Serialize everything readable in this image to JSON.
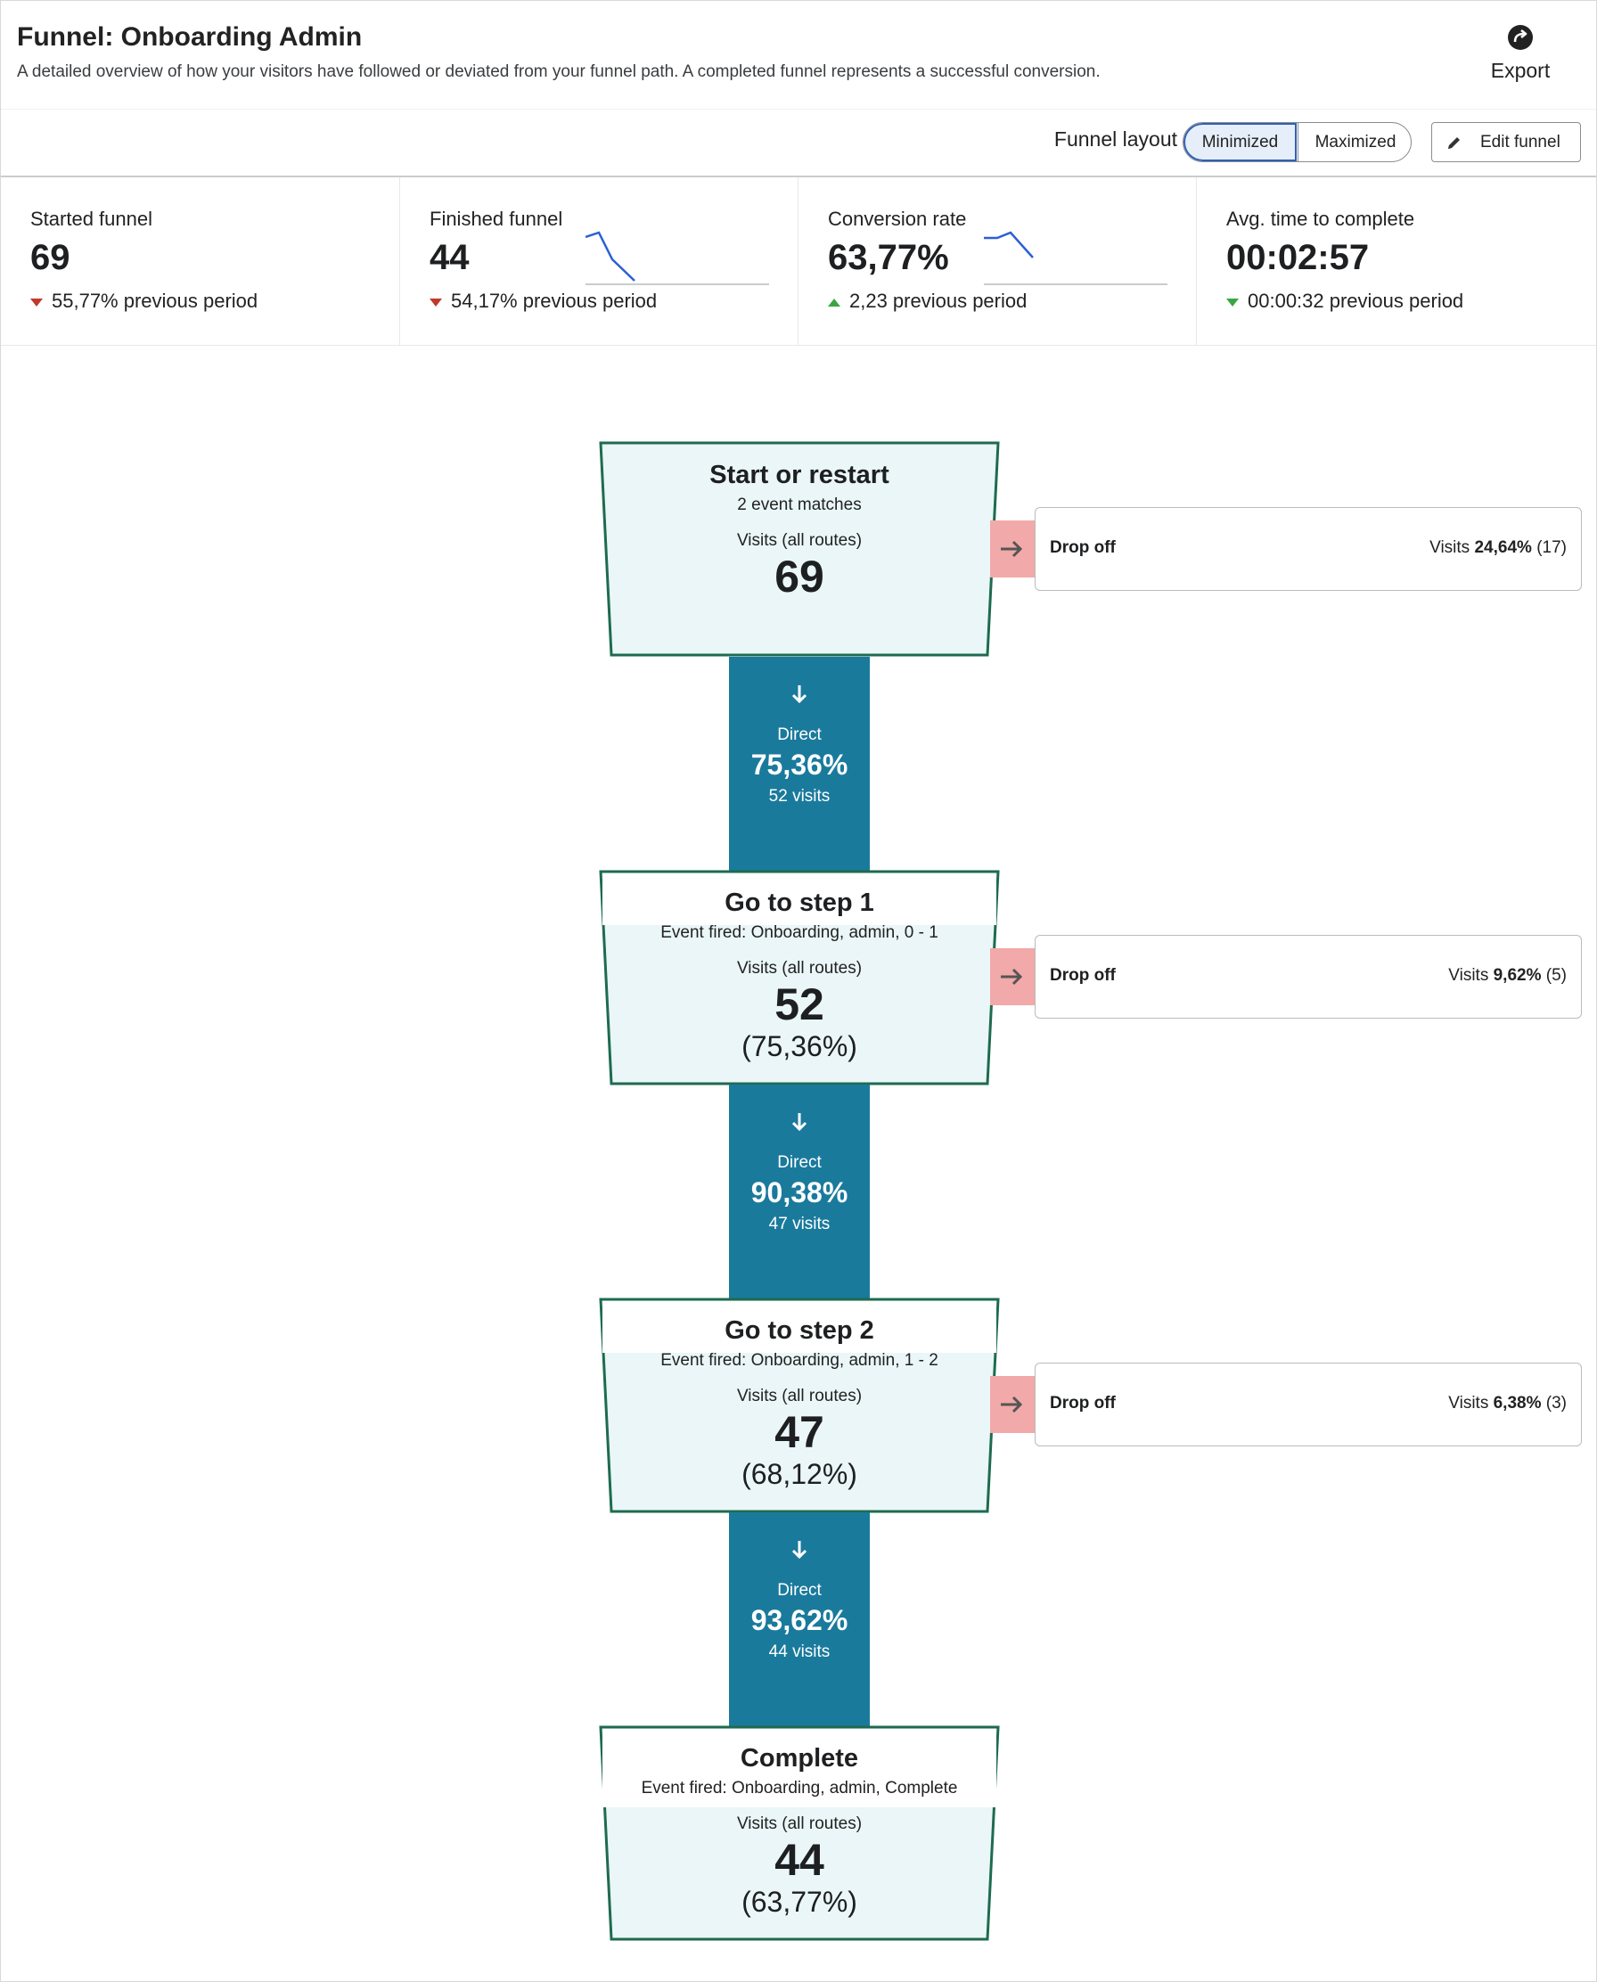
{
  "header": {
    "title": "Funnel: Onboarding Admin",
    "subtitle": "A detailed overview of how your visitors have followed or deviated from your funnel path. A completed funnel represents a successful conversion.",
    "export_label": "Export"
  },
  "toolbar": {
    "layout_label": "Funnel layout",
    "minimized_label": "Minimized",
    "maximized_label": "Maximized",
    "selected_layout": "Minimized",
    "edit_label": "Edit funnel"
  },
  "stats": [
    {
      "label": "Started funnel",
      "value": "69",
      "change": "55,77% previous period",
      "trend": "down-red"
    },
    {
      "label": "Finished funnel",
      "value": "44",
      "change": "54,17% previous period",
      "trend": "down-red"
    },
    {
      "label": "Conversion rate",
      "value": "63,77%",
      "change": "2,23 previous period",
      "trend": "up-green"
    },
    {
      "label": "Avg. time to complete",
      "value": "00:02:57",
      "change": "00:00:32 previous period",
      "trend": "down-green"
    }
  ],
  "steps": [
    {
      "title": "Start or restart",
      "subtitle": "2 event matches",
      "visits_label": "Visits (all routes)",
      "visits": "69",
      "percent": ""
    },
    {
      "title": "Go to step 1",
      "subtitle": "Event fired: Onboarding, admin, 0 - 1",
      "visits_label": "Visits (all routes)",
      "visits": "52",
      "percent": "(75,36%)"
    },
    {
      "title": "Go to step 2",
      "subtitle": "Event fired: Onboarding, admin, 1 - 2",
      "visits_label": "Visits (all routes)",
      "visits": "47",
      "percent": "(68,12%)"
    },
    {
      "title": "Complete",
      "subtitle": "Event fired: Onboarding, admin, Complete",
      "visits_label": "Visits (all routes)",
      "visits": "44",
      "percent": "(63,77%)"
    }
  ],
  "connectors": [
    {
      "label": "Direct",
      "percent": "75,36%",
      "visits": "52 visits"
    },
    {
      "label": "Direct",
      "percent": "90,38%",
      "visits": "47 visits"
    },
    {
      "label": "Direct",
      "percent": "93,62%",
      "visits": "44 visits"
    }
  ],
  "dropoffs": [
    {
      "label": "Drop off",
      "visits_prefix": "Visits",
      "percent": "24,64%",
      "count": "(17)"
    },
    {
      "label": "Drop off",
      "visits_prefix": "Visits",
      "percent": "9,62%",
      "count": "(5)"
    },
    {
      "label": "Drop off",
      "visits_prefix": "Visits",
      "percent": "6,38%",
      "count": "(3)"
    }
  ],
  "colors": {
    "accent": "#2f5fb3",
    "node_border": "#1e6b4f",
    "node_fill": "#eaf6f8",
    "connector": "#1a7a9c",
    "dropoff_link": "#f2a9a9",
    "decrease": "#c0392b",
    "increase": "#3aa642",
    "sparkline": "#2a5fd6"
  }
}
